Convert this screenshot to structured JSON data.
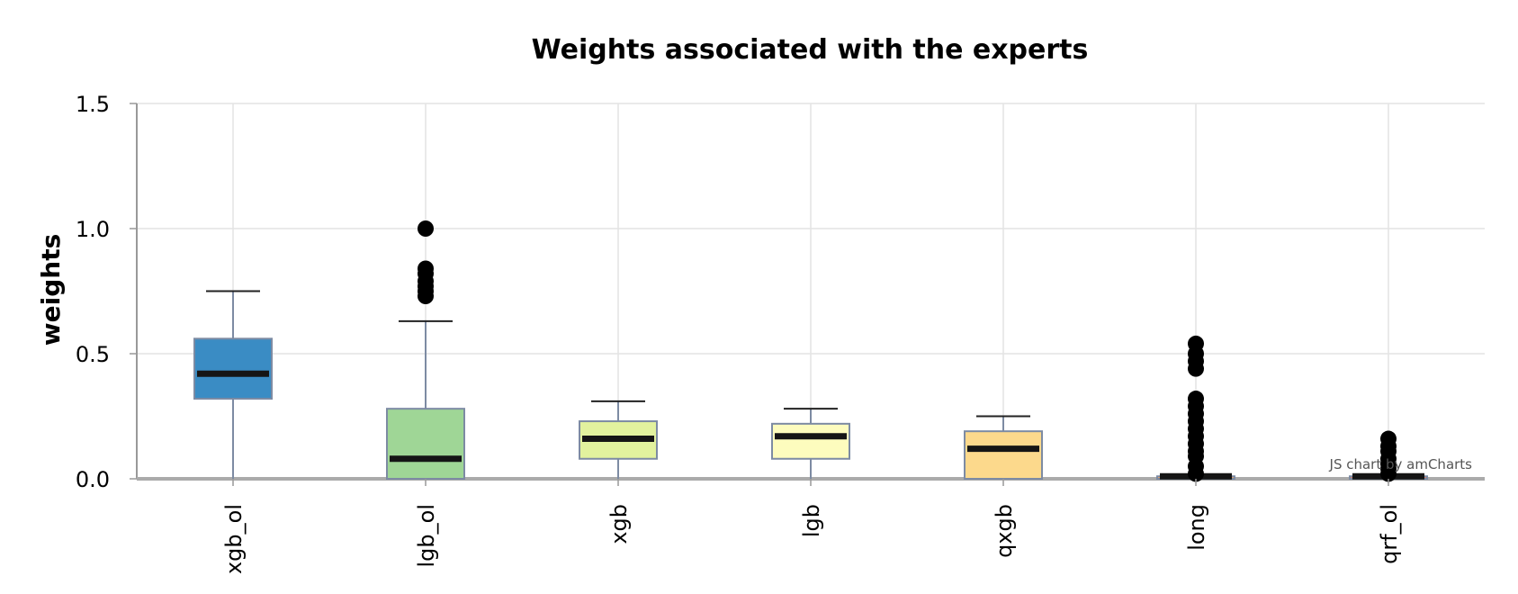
{
  "chart_data": {
    "type": "boxplot",
    "title": "Weights associated with the experts",
    "xlabel": "",
    "ylabel": "weights",
    "ylim": [
      0,
      1.5
    ],
    "yticks": [
      "0.0",
      "0.5",
      "1.0",
      "1.5"
    ],
    "grid": true,
    "credit": "JS chart by amCharts",
    "categories": [
      "xgb_ol",
      "lgb_ol",
      "xgb",
      "lgb",
      "qxgb",
      "long",
      "qrf_ol"
    ],
    "boxes": [
      {
        "category": "xgb_ol",
        "min": 0.0,
        "q1": 0.32,
        "median": 0.42,
        "q3": 0.56,
        "max": 0.75,
        "outliers": [],
        "color": "#3a8cc4"
      },
      {
        "category": "lgb_ol",
        "min": 0.0,
        "q1": 0.0,
        "median": 0.08,
        "q3": 0.28,
        "max": 0.63,
        "outliers": [
          0.73,
          0.75,
          0.77,
          0.79,
          0.82,
          0.84,
          1.0
        ],
        "color": "#9fd696"
      },
      {
        "category": "xgb",
        "min": 0.0,
        "q1": 0.08,
        "median": 0.16,
        "q3": 0.23,
        "max": 0.31,
        "outliers": [],
        "color": "#e2f29e"
      },
      {
        "category": "lgb",
        "min": 0.0,
        "q1": 0.08,
        "median": 0.17,
        "q3": 0.22,
        "max": 0.28,
        "outliers": [],
        "color": "#fdfcbe"
      },
      {
        "category": "qxgb",
        "min": 0.0,
        "q1": 0.0,
        "median": 0.12,
        "q3": 0.19,
        "max": 0.25,
        "outliers": [],
        "color": "#fcd98c"
      },
      {
        "category": "long",
        "min": 0.0,
        "q1": 0.0,
        "median": 0.01,
        "q3": 0.01,
        "max": 0.01,
        "outliers": [
          0.02,
          0.05,
          0.09,
          0.11,
          0.14,
          0.17,
          0.2,
          0.23,
          0.26,
          0.29,
          0.32,
          0.44,
          0.47,
          0.5,
          0.54
        ],
        "color": "#f4a460"
      },
      {
        "category": "qrf_ol",
        "min": 0.0,
        "q1": 0.0,
        "median": 0.01,
        "q3": 0.01,
        "max": 0.01,
        "outliers": [
          0.02,
          0.04,
          0.06,
          0.08,
          0.11,
          0.13,
          0.16
        ],
        "color": "#e87a5a"
      }
    ]
  }
}
